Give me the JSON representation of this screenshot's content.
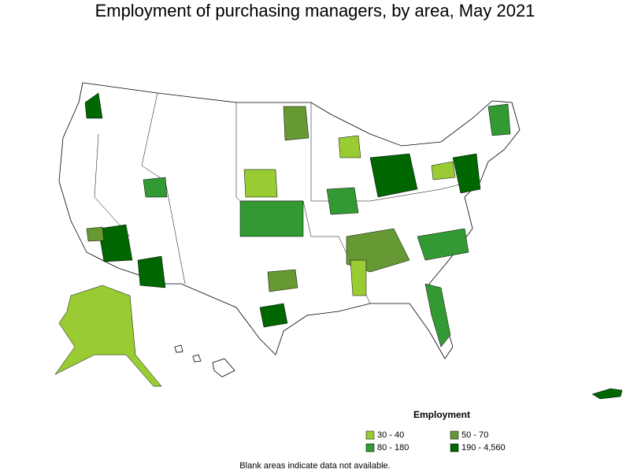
{
  "title": "Employment of purchasing managers, by area, May 2021",
  "legend": {
    "title": "Employment",
    "items": [
      {
        "label": "30 - 40",
        "color": "#99cc33"
      },
      {
        "label": "50 - 70",
        "color": "#669933"
      },
      {
        "label": "80 - 180",
        "color": "#339933"
      },
      {
        "label": "190 - 4,560",
        "color": "#006600"
      }
    ]
  },
  "footnote": "Blank areas indicate data not available."
}
